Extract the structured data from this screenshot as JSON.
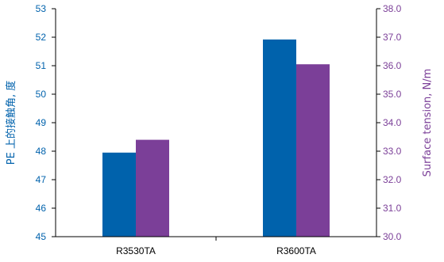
{
  "chart_data": {
    "type": "bar",
    "categories": [
      "R3530TA",
      "R3600TA"
    ],
    "series": [
      {
        "values": [
          47.95,
          51.92
        ],
        "axis": "left",
        "color": "#0062ac"
      },
      {
        "values": [
          33.4,
          36.05
        ],
        "axis": "right",
        "color": "#7b3f98"
      }
    ],
    "title": "",
    "xlabel": "",
    "ylabel": "PE 上的接触角, 度",
    "y2label": "Surface tension, N/m",
    "ylim": [
      45,
      53
    ],
    "y2lim": [
      30.0,
      38.0
    ],
    "yticks": [
      "45",
      "46",
      "47",
      "48",
      "49",
      "50",
      "51",
      "52",
      "53"
    ],
    "y2ticks": [
      "30.0",
      "31.0",
      "32.0",
      "33.0",
      "34.0",
      "35.0",
      "36.0",
      "37.0",
      "38.0"
    ],
    "grid": false,
    "legend": "none",
    "colors": {
      "left_axis": "#0062ac",
      "right_axis": "#7b3f98",
      "axis_line": "#000000"
    }
  }
}
